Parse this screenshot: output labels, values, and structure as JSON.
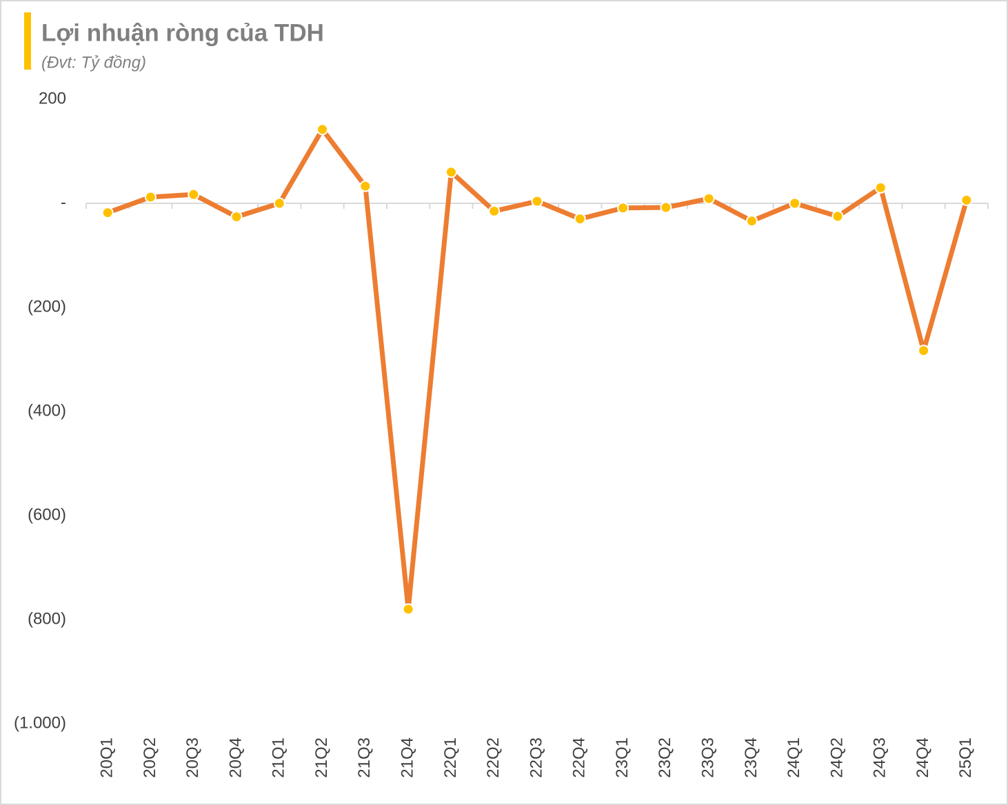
{
  "chart_data": {
    "type": "line",
    "title": "Lợi nhuận ròng của TDH",
    "subtitle": "(Đvt: Tỷ đồng)",
    "categories": [
      "20Q1",
      "20Q2",
      "20Q3",
      "20Q4",
      "21Q1",
      "21Q2",
      "21Q3",
      "21Q4",
      "22Q1",
      "22Q2",
      "22Q3",
      "22Q4",
      "23Q1",
      "23Q2",
      "23Q3",
      "23Q4",
      "24Q1",
      "24Q2",
      "24Q3",
      "24Q4",
      "25Q1"
    ],
    "values": [
      -18,
      12,
      17,
      -26,
      0,
      142,
      33,
      -780,
      60,
      -15,
      4,
      -30,
      -9,
      -8,
      9,
      -34,
      0,
      -25,
      30,
      -283,
      6
    ],
    "color": "#ed7d31",
    "marker_color": "#ffc000",
    "ylim": [
      -1000,
      200
    ],
    "yticks": [
      200,
      {
        "value": 0,
        "label": "-"
      },
      {
        "value": -200,
        "label": "(200)"
      },
      {
        "value": -400,
        "label": "(400)"
      },
      {
        "value": -600,
        "label": "(600)"
      },
      {
        "value": -800,
        "label": "(800)"
      },
      {
        "value": -1000,
        "label": "(1.000)"
      }
    ]
  }
}
